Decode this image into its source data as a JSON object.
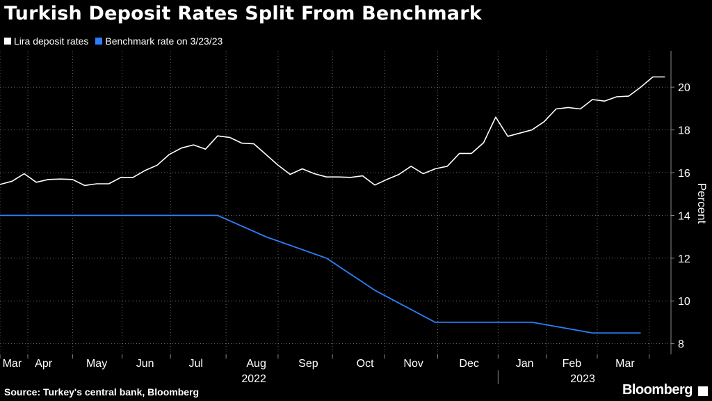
{
  "header": {
    "title": "Turkish Deposit Rates Split From Benchmark"
  },
  "legend": [
    {
      "label": "Lira deposit rates",
      "color": "#ffffff"
    },
    {
      "label": "Benchmark rate on 3/23/23",
      "color": "#2d7ff9"
    }
  ],
  "footer": {
    "source": "Source: Turkey's central bank, Bloomberg",
    "brand": "Bloomberg"
  },
  "chart_data": {
    "type": "line",
    "title": "Turkish Deposit Rates Split From Benchmark",
    "ylabel": "Percent",
    "ylim": [
      7.5,
      21.7
    ],
    "yticks": [
      8,
      10,
      12,
      14,
      16,
      18,
      20
    ],
    "xlim": [
      0,
      55.5
    ],
    "month_ticks": [
      {
        "label": "Mar",
        "x": 1
      },
      {
        "label": "Apr",
        "x": 3.6
      },
      {
        "label": "May",
        "x": 8
      },
      {
        "label": "Jun",
        "x": 12
      },
      {
        "label": "Jul",
        "x": 16.2
      },
      {
        "label": "Aug",
        "x": 21.2
      },
      {
        "label": "Sep",
        "x": 25.5
      },
      {
        "label": "Oct",
        "x": 30.2
      },
      {
        "label": "Nov",
        "x": 34.2
      },
      {
        "label": "Dec",
        "x": 38.8
      },
      {
        "label": "Jan",
        "x": 43.4
      },
      {
        "label": "Feb",
        "x": 47.3
      },
      {
        "label": "Mar",
        "x": 51.7
      }
    ],
    "month_dividers": [
      0,
      2.3,
      6,
      10.1,
      14.1,
      18.7,
      23,
      27.5,
      31.8,
      36.2,
      41.2,
      45.2,
      49.4,
      53.7
    ],
    "year_labels": [
      {
        "label": "2022",
        "x": 21
      },
      {
        "label": "2023",
        "x": 48.2
      }
    ],
    "year_divider": 41.2,
    "series": [
      {
        "name": "Lira deposit rates",
        "color": "#ffffff",
        "x": [
          0,
          1,
          2,
          3,
          4,
          5,
          6,
          7,
          8,
          9,
          10,
          11,
          12,
          13,
          14,
          15,
          16,
          17,
          18,
          19,
          20,
          21,
          22,
          23,
          24,
          25,
          26,
          27,
          28,
          29,
          30,
          31,
          32,
          33,
          34,
          35,
          36,
          37,
          38,
          39,
          40,
          41,
          42,
          43,
          44,
          45,
          46,
          47,
          48,
          49,
          50,
          51,
          52,
          53,
          54,
          55
        ],
        "values": [
          15.45,
          15.6,
          15.95,
          15.55,
          15.68,
          15.7,
          15.68,
          15.4,
          15.48,
          15.48,
          15.78,
          15.78,
          16.1,
          16.35,
          16.85,
          17.15,
          17.3,
          17.1,
          17.72,
          17.65,
          17.38,
          17.35,
          16.85,
          16.35,
          15.92,
          16.18,
          15.95,
          15.8,
          15.8,
          15.78,
          15.85,
          15.42,
          15.68,
          15.92,
          16.3,
          15.95,
          16.18,
          16.3,
          16.9,
          16.9,
          17.4,
          18.6,
          17.7,
          17.85,
          18.0,
          18.38,
          18.98,
          19.05,
          18.98,
          19.42,
          19.35,
          19.55,
          19.58,
          20.0,
          20.48,
          20.48
        ]
      },
      {
        "name": "Benchmark rate on 3/23/23",
        "color": "#2d7ff9",
        "x": [
          0,
          18,
          22,
          27,
          31,
          36,
          44,
          49,
          53
        ],
        "values": [
          14,
          14,
          13,
          12,
          10.5,
          9,
          9,
          8.5,
          8.5
        ]
      }
    ]
  }
}
